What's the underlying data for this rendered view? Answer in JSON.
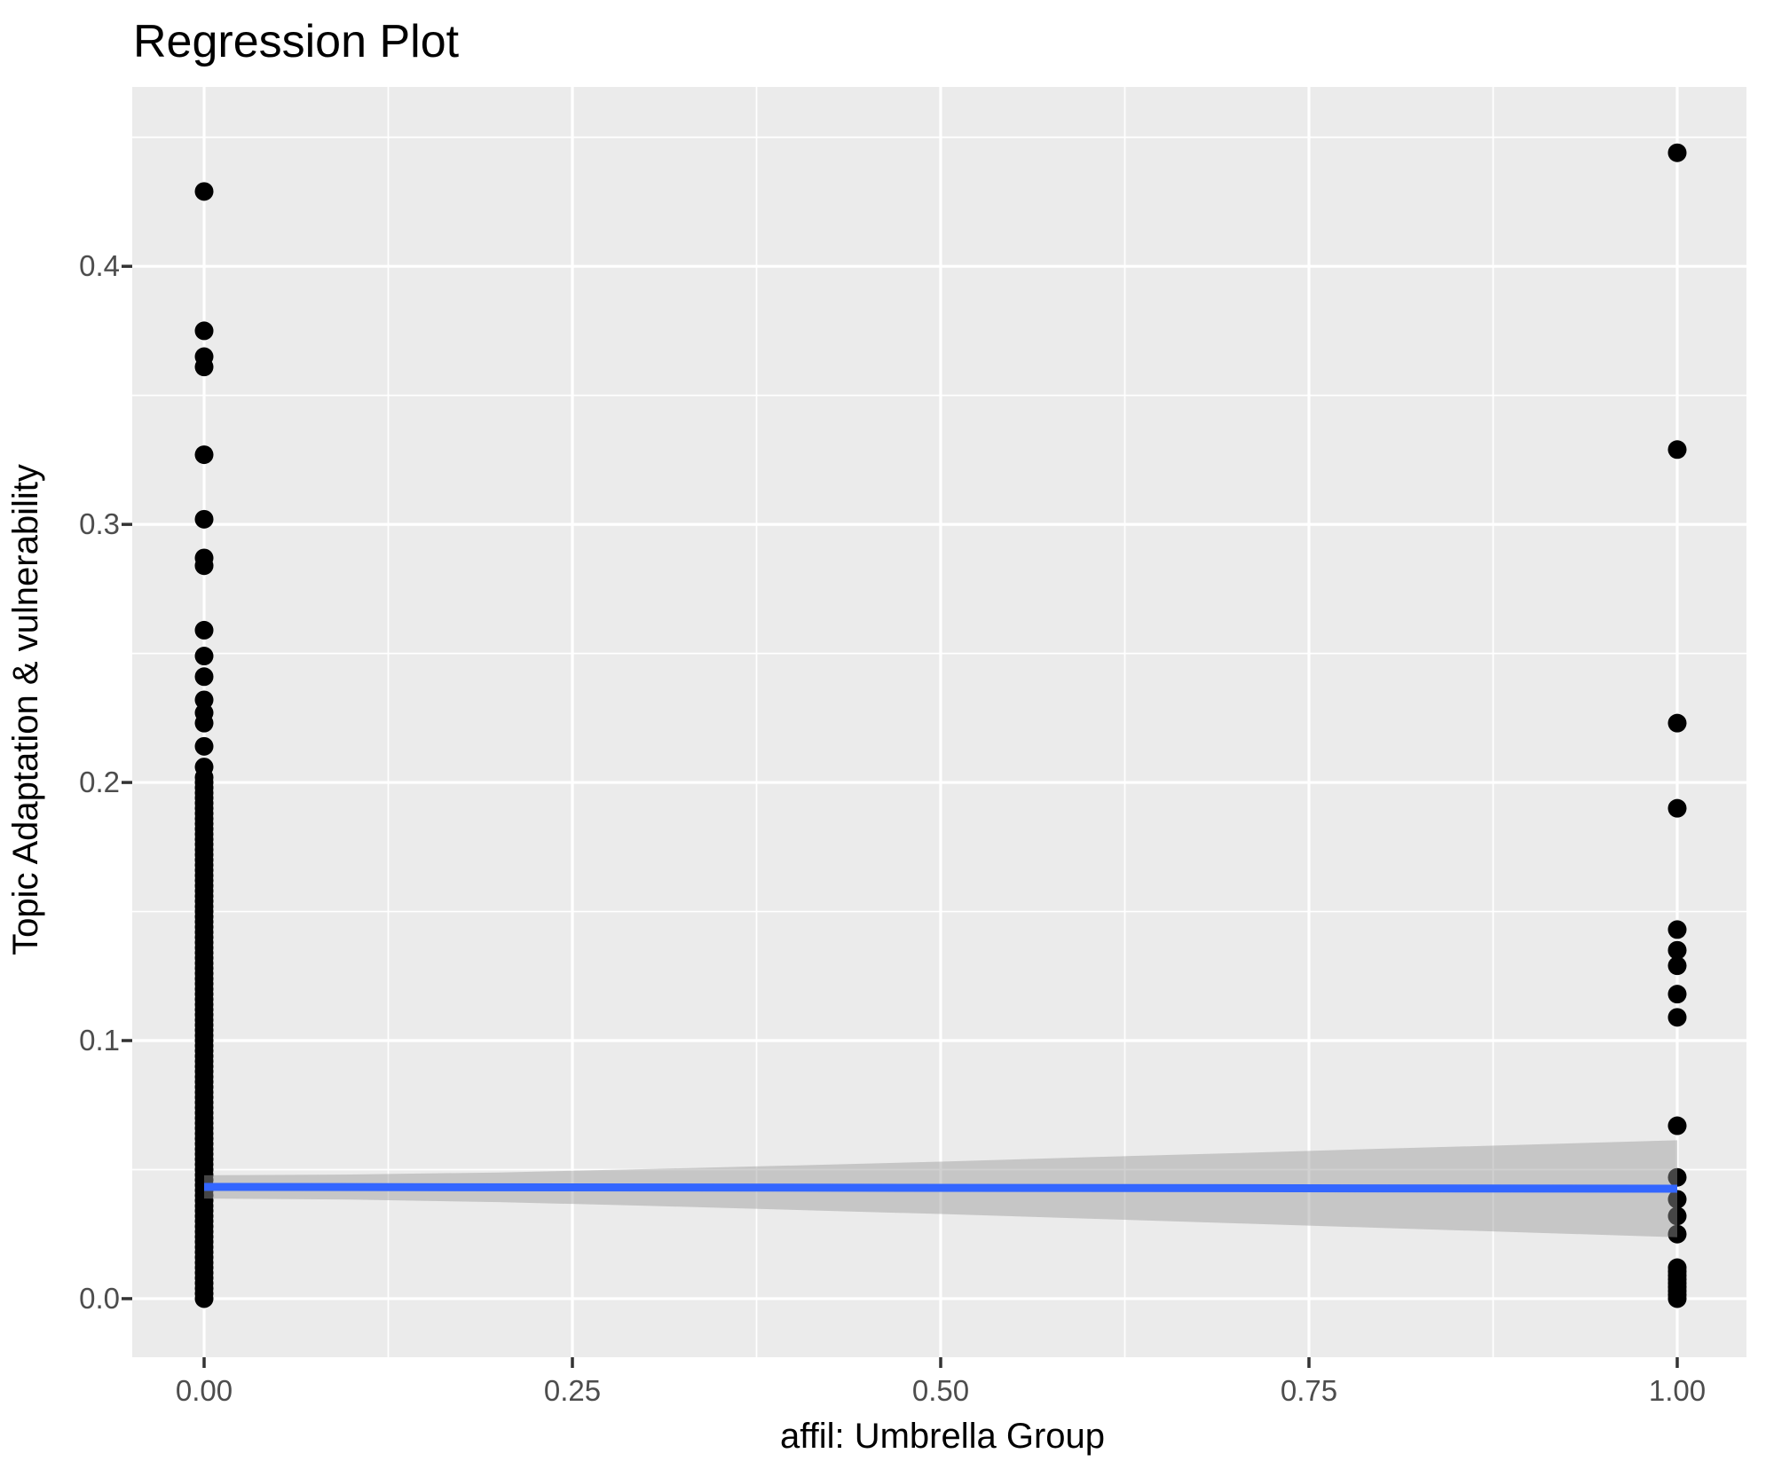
{
  "page": {
    "background": "#FFFFFF"
  },
  "chart_data": {
    "type": "scatter",
    "title": "Regression Plot",
    "xlabel": "affil: Umbrella Group",
    "ylabel": "Topic Adaptation & vulnerability",
    "legend": "none",
    "grid": "on",
    "style": {
      "panel_bg": "#EBEBEB",
      "grid_color": "#FFFFFF",
      "point_color": "#000000",
      "smooth_line_color": "#3366FF",
      "ribbon_color": "#999999",
      "ribbon_alpha": 0.45,
      "tick_mark_color": "#333333",
      "tick_label_color": "#4D4D4D"
    },
    "x_axis": {
      "ticks": [
        0,
        0.25,
        0.5,
        0.75,
        1
      ],
      "tick_labels": [
        "0.00",
        "0.25",
        "0.50",
        "0.75",
        "1.00"
      ],
      "minor_ticks": [
        0.125,
        0.375,
        0.625,
        0.875
      ],
      "range": [
        -0.0488,
        1.047
      ]
    },
    "y_axis": {
      "ticks": [
        0,
        0.1,
        0.2,
        0.3,
        0.4
      ],
      "tick_labels": [
        "0.0",
        "0.1",
        "0.2",
        "0.3",
        "0.4"
      ],
      "minor_ticks": [
        0.05,
        0.15,
        0.25,
        0.35,
        0.45
      ],
      "range": [
        -0.0227,
        0.4695
      ]
    },
    "series": [
      {
        "name": "affil = 0",
        "x": 0,
        "y_values": [
          0.429,
          0.375,
          0.365,
          0.361,
          0.327,
          0.302,
          0.287,
          0.284,
          0.259,
          0.249,
          0.241,
          0.232,
          0.227,
          0.223,
          0.214,
          0.206
        ],
        "y_dense_run": {
          "from": 0.0,
          "to": 0.203,
          "step": 0.002,
          "note": "overplotted solid column of points from 0.000 to ~0.203"
        }
      },
      {
        "name": "affil = 1",
        "x": 1,
        "y_values": [
          0.444,
          0.329,
          0.223,
          0.19,
          0.143,
          0.135,
          0.129,
          0.118,
          0.109,
          0.067,
          0.047,
          0.0385,
          0.032,
          0.025
        ],
        "y_dense_run": {
          "from": 0.0,
          "to": 0.012,
          "step": 0.0015,
          "note": "overplotted cluster of points near 0"
        }
      }
    ],
    "regression_line": {
      "x": [
        0,
        1
      ],
      "y": [
        0.0433,
        0.0426
      ]
    },
    "confidence_ribbon": [
      {
        "x": 0.0,
        "lo": 0.0388,
        "hi": 0.0478
      },
      {
        "x": 0.1,
        "lo": 0.0384,
        "hi": 0.0481
      },
      {
        "x": 0.2,
        "lo": 0.0374,
        "hi": 0.0489
      },
      {
        "x": 0.3,
        "lo": 0.036,
        "hi": 0.0502
      },
      {
        "x": 0.4,
        "lo": 0.0344,
        "hi": 0.0516
      },
      {
        "x": 0.5,
        "lo": 0.0328,
        "hi": 0.0531
      },
      {
        "x": 0.6,
        "lo": 0.031,
        "hi": 0.0548
      },
      {
        "x": 0.7,
        "lo": 0.0292,
        "hi": 0.0564
      },
      {
        "x": 0.8,
        "lo": 0.0274,
        "hi": 0.0581
      },
      {
        "x": 0.9,
        "lo": 0.0256,
        "hi": 0.0597
      },
      {
        "x": 1.0,
        "lo": 0.0238,
        "hi": 0.0614
      }
    ]
  }
}
